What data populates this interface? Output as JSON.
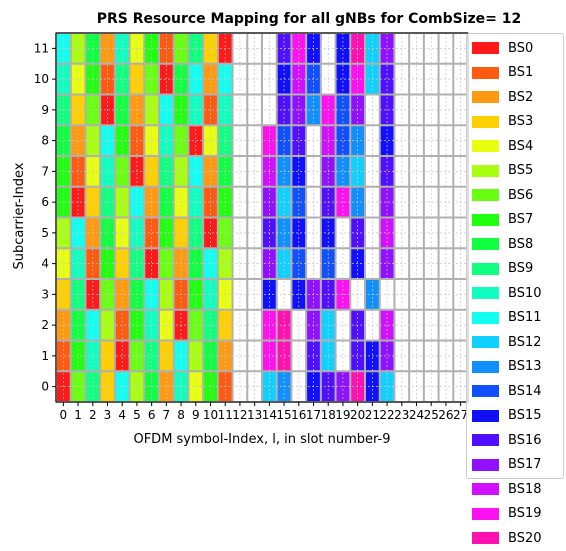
{
  "chart_data": {
    "type": "heatmap",
    "title": "PRS Resource Mapping for all gNBs for CombSize= 12",
    "xlabel": "OFDM symbol-Index, l, in slot number-9",
    "ylabel": "Subcarrier-Index",
    "x_ticks": [
      "0",
      "1",
      "2",
      "3",
      "4",
      "5",
      "6",
      "7",
      "8",
      "9",
      "10",
      "11",
      "12",
      "13",
      "14",
      "15",
      "16",
      "17",
      "18",
      "19",
      "20",
      "21",
      "22",
      "23",
      "24",
      "25",
      "26",
      "27"
    ],
    "y_ticks": [
      "0",
      "1",
      "2",
      "3",
      "4",
      "5",
      "6",
      "7",
      "8",
      "9",
      "10",
      "11"
    ],
    "xlim": [
      -0.5,
      27.5
    ],
    "ylim": [
      -0.5,
      11.5
    ],
    "grid": [
      [
        11,
        5,
        8,
        2,
        10,
        4,
        7,
        1,
        6,
        9,
        3,
        0,
        -1,
        -1,
        -1,
        16,
        19,
        15,
        -1,
        15,
        20,
        12,
        17,
        -1,
        -1,
        -1,
        -1,
        -1
      ],
      [
        10,
        4,
        7,
        1,
        9,
        3,
        6,
        0,
        8,
        11,
        2,
        11,
        -1,
        -1,
        -1,
        15,
        18,
        14,
        -1,
        15,
        19,
        12,
        16,
        -1,
        -1,
        -1,
        -1,
        -1
      ],
      [
        9,
        3,
        6,
        0,
        8,
        2,
        5,
        11,
        7,
        10,
        1,
        10,
        -1,
        -1,
        -1,
        16,
        17,
        13,
        19,
        14,
        17,
        -1,
        16,
        -1,
        -1,
        -1,
        -1,
        -1
      ],
      [
        8,
        2,
        5,
        11,
        7,
        1,
        4,
        10,
        6,
        0,
        4,
        9,
        -1,
        -1,
        19,
        14,
        16,
        -1,
        18,
        14,
        13,
        -1,
        15,
        -1,
        -1,
        -1,
        -1,
        -1
      ],
      [
        7,
        1,
        4,
        10,
        6,
        0,
        3,
        9,
        5,
        11,
        2,
        8,
        -1,
        -1,
        18,
        13,
        15,
        -1,
        17,
        13,
        12,
        -1,
        16,
        -1,
        -1,
        -1,
        -1,
        -1
      ],
      [
        7,
        0,
        3,
        9,
        5,
        11,
        2,
        8,
        4,
        10,
        1,
        7,
        -1,
        -1,
        17,
        12,
        14,
        -1,
        16,
        19,
        13,
        -1,
        17,
        -1,
        -1,
        -1,
        -1,
        -1
      ],
      [
        5,
        11,
        2,
        8,
        4,
        10,
        1,
        7,
        3,
        9,
        0,
        6,
        -1,
        -1,
        16,
        13,
        15,
        -1,
        15,
        -1,
        16,
        -1,
        18,
        -1,
        -1,
        -1,
        -1,
        -1
      ],
      [
        4,
        10,
        1,
        7,
        3,
        9,
        0,
        6,
        2,
        8,
        11,
        5,
        -1,
        -1,
        17,
        12,
        14,
        -1,
        14,
        -1,
        15,
        -1,
        17,
        -1,
        -1,
        -1,
        -1,
        -1
      ],
      [
        3,
        9,
        0,
        6,
        2,
        8,
        11,
        5,
        1,
        7,
        10,
        4,
        -1,
        -1,
        15,
        -1,
        15,
        17,
        16,
        19,
        -1,
        13,
        -1,
        -1,
        -1,
        -1,
        -1,
        -1
      ],
      [
        2,
        8,
        11,
        5,
        1,
        7,
        10,
        4,
        0,
        6,
        9,
        3,
        -1,
        -1,
        19,
        20,
        -1,
        17,
        12,
        -1,
        16,
        -1,
        18,
        -1,
        -1,
        -1,
        -1,
        -1
      ],
      [
        1,
        7,
        10,
        3,
        0,
        6,
        9,
        3,
        11,
        5,
        8,
        2,
        -1,
        -1,
        19,
        20,
        -1,
        16,
        12,
        -1,
        16,
        15,
        17,
        -1,
        -1,
        -1,
        -1,
        -1
      ],
      [
        0,
        6,
        9,
        3,
        11,
        5,
        8,
        2,
        10,
        4,
        7,
        1,
        -1,
        -1,
        12,
        13,
        -1,
        15,
        16,
        17,
        20,
        15,
        12,
        -1,
        -1,
        -1,
        -1,
        -1
      ]
    ],
    "legend_position": "right, overlapping plot",
    "stations": [
      "BS0",
      "BS1",
      "BS2",
      "BS3",
      "BS4",
      "BS5",
      "BS6",
      "BS7",
      "BS8",
      "BS9",
      "BS10",
      "BS11",
      "BS12",
      "BS13",
      "BS14",
      "BS15",
      "BS16",
      "BS17",
      "BS18",
      "BS19",
      "BS20"
    ],
    "colors": [
      "#ff1a1a",
      "#ff5a10",
      "#ff9a10",
      "#ffd000",
      "#e8ff10",
      "#a8ff10",
      "#68ff10",
      "#20ff10",
      "#10ff40",
      "#10ff80",
      "#10ffc0",
      "#10fff0",
      "#10d0ff",
      "#1090ff",
      "#1050ff",
      "#1010ff",
      "#5010ff",
      "#9010ff",
      "#d010ff",
      "#ff10f0",
      "#ff10b0"
    ],
    "grid_note": "rows listed top (subcarrier 11) to bottom (subcarrier 0); each value is the BS index occupying that resource element, -1 = unused"
  }
}
